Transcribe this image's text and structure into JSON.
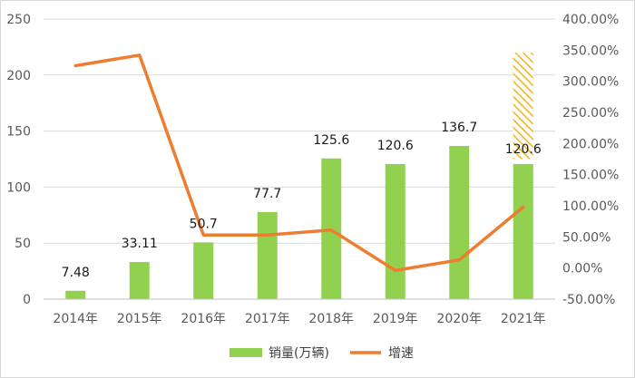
{
  "chart_data": {
    "type": "bar",
    "categories": [
      "2014年",
      "2015年",
      "2016年",
      "2017年",
      "2018年",
      "2019年",
      "2020年",
      "2021年"
    ],
    "series": [
      {
        "name": "销量(万辆)",
        "type": "bar",
        "axis": "left",
        "color": "#92d050",
        "values": [
          7.48,
          33.11,
          50.7,
          77.7,
          125.6,
          120.6,
          136.7,
          120.6
        ],
        "labels": [
          "7.48",
          "33.11",
          "50.7",
          "77.7",
          "125.6",
          "120.6",
          "136.7",
          "120.6"
        ]
      },
      {
        "name": "增速",
        "type": "line",
        "axis": "right",
        "color": "#ed7d31",
        "values": [
          325,
          342,
          53,
          53,
          61,
          -4,
          13,
          98
        ]
      }
    ],
    "projection": {
      "category": "2021年",
      "from": 125,
      "to": 220,
      "color": "#f2b61b"
    },
    "left_axis": {
      "min": 0,
      "max": 250,
      "ticks": [
        "0",
        "50",
        "100",
        "150",
        "200",
        "250"
      ]
    },
    "right_axis": {
      "min": -50,
      "max": 400,
      "ticks": [
        "-50.00%",
        "0.00%",
        "50.00%",
        "100.00%",
        "150.00%",
        "200.00%",
        "250.00%",
        "300.00%",
        "350.00%",
        "400.00%"
      ]
    },
    "legend": [
      "销量(万辆)",
      "增速"
    ],
    "legend_position": "bottom",
    "grid": true
  }
}
